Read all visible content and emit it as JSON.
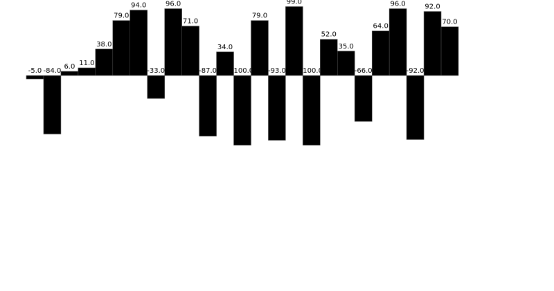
{
  "chart_data": {
    "type": "bar",
    "values": [
      -5,
      -84,
      6,
      11,
      38,
      79,
      94,
      -33,
      96,
      71,
      -87,
      34,
      -100,
      79,
      -93,
      99,
      -100,
      52,
      35,
      -66,
      64,
      96,
      -92,
      92,
      70
    ],
    "value_labels": [
      "-5.0",
      "-84.0",
      "6.0",
      "11.0",
      "38.0",
      "79.0",
      "94.0",
      "-33.0",
      "96.0",
      "71.0",
      "-87.0",
      "34.0",
      "-100.0",
      "79.0",
      "-93.0",
      "99.0",
      "-100.0",
      "52.0",
      "35.0",
      "-66.0",
      "64.0",
      "96.0",
      "-92.0",
      "92.0",
      "70.0"
    ],
    "color": "#000000"
  }
}
